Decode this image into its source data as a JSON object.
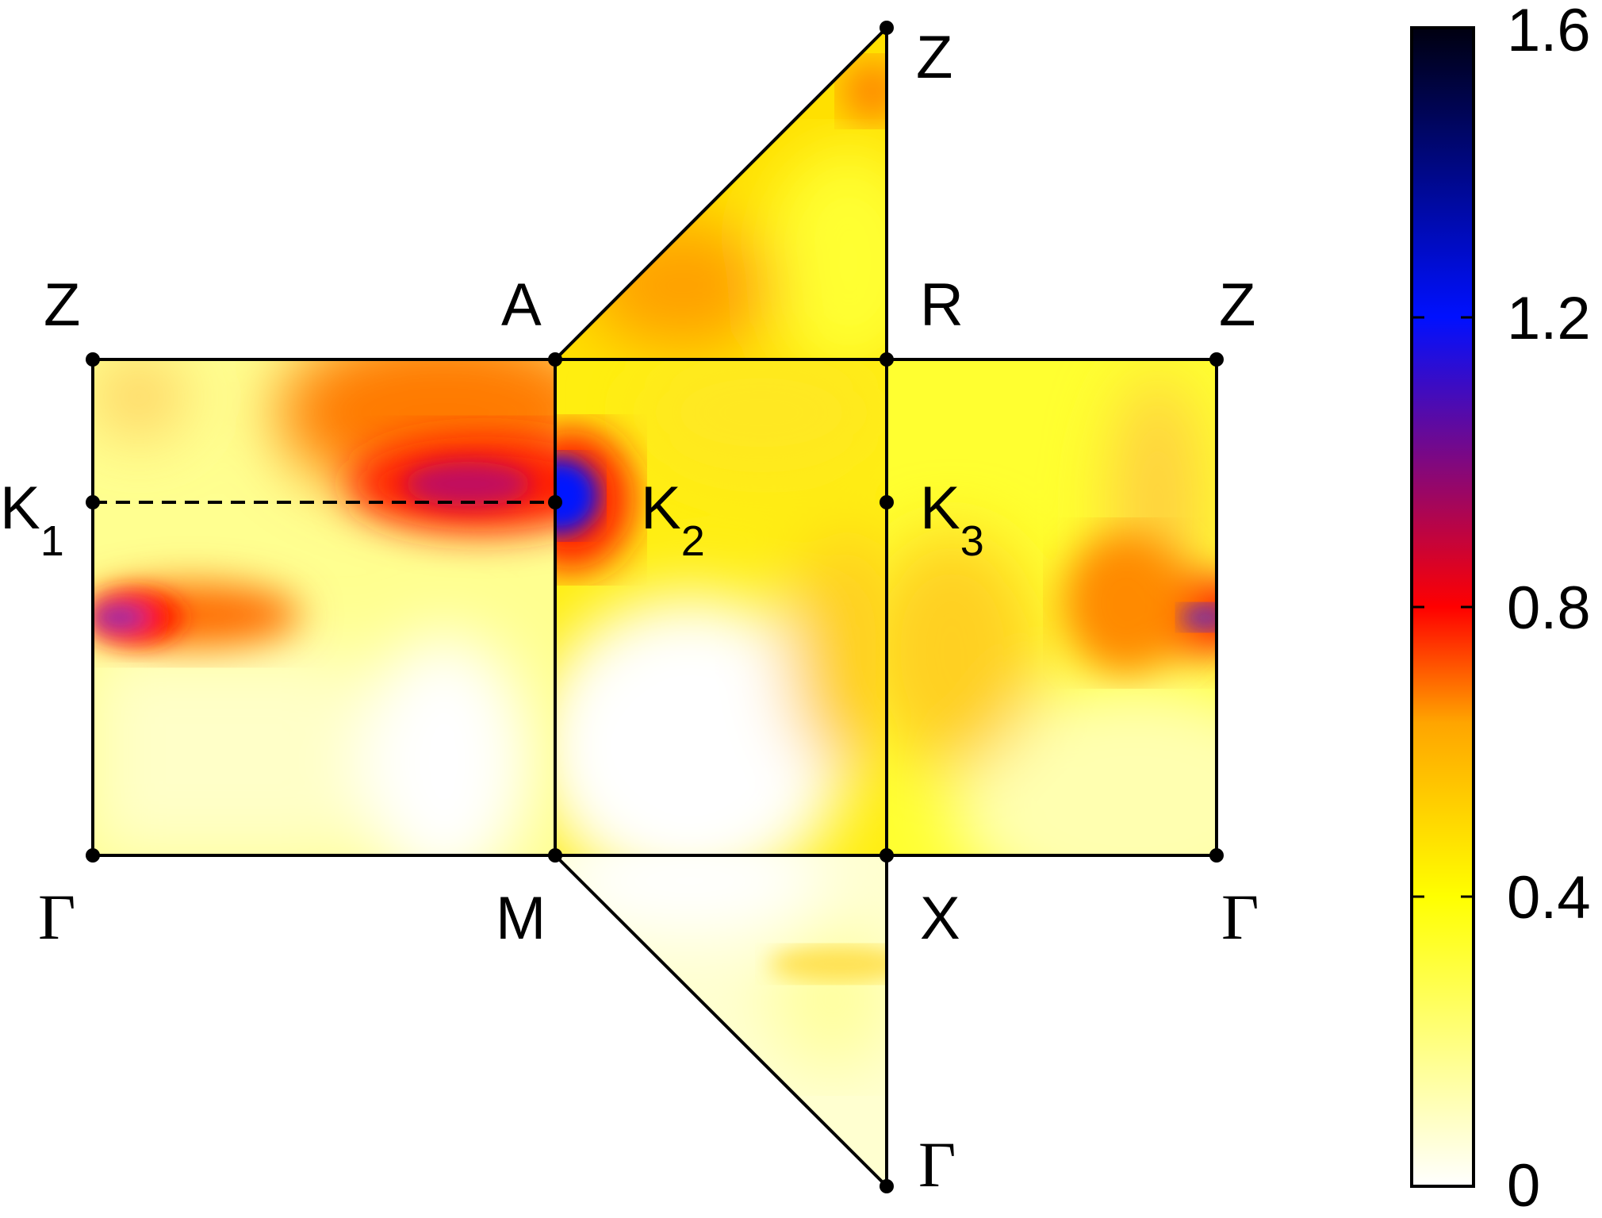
{
  "figure": {
    "points": [
      {
        "id": "Z-left-top",
        "text": "Z"
      },
      {
        "id": "A",
        "text": "A"
      },
      {
        "id": "R",
        "text": "R"
      },
      {
        "id": "Z-right",
        "text": "Z"
      },
      {
        "id": "Z-top",
        "text": "Z"
      },
      {
        "id": "K1",
        "text": "K",
        "sub": "1"
      },
      {
        "id": "K2",
        "text": "K",
        "sub": "2"
      },
      {
        "id": "K3",
        "text": "K",
        "sub": "3"
      },
      {
        "id": "Gamma-left",
        "text": "Γ"
      },
      {
        "id": "M",
        "text": "M"
      },
      {
        "id": "X",
        "text": "X"
      },
      {
        "id": "Gamma-right",
        "text": "Γ"
      },
      {
        "id": "Gamma-bottom",
        "text": "Γ"
      }
    ]
  },
  "colorbar": {
    "ticks": [
      "0",
      "0.4",
      "0.8",
      "1.2",
      "1.6"
    ],
    "range": [
      0,
      1.6
    ],
    "colors": [
      "#ffffff",
      "#ffff00",
      "#ffa500",
      "#ff0000",
      "#0000ff",
      "#000010"
    ]
  },
  "colors": {
    "frame": "#000000",
    "low": "#ffffd8",
    "mid": "#ffd400",
    "high": "#ff1a00",
    "peak": "#0010ff"
  }
}
